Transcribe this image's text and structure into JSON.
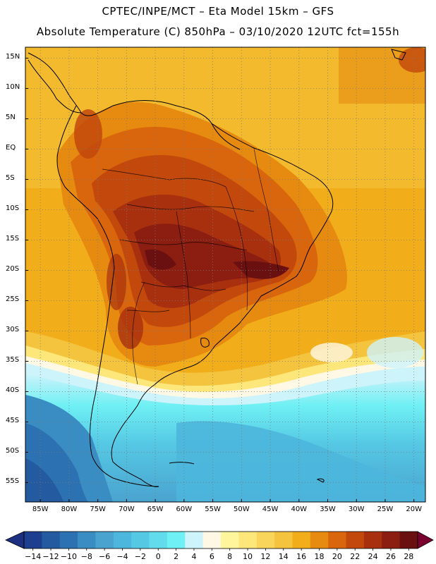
{
  "title": {
    "line1": "CPTEC/INPE/MCT –  Eta Model 15km – GFS",
    "line2": "Absolute Temperature (C) 850hPa – 03/10/2020 12UTC fct=155h"
  },
  "map": {
    "lat_labels": [
      "15N",
      "10N",
      "5N",
      "EQ",
      "5S",
      "10S",
      "15S",
      "20S",
      "25S",
      "30S",
      "35S",
      "40S",
      "45S",
      "50S",
      "55S"
    ],
    "lon_labels": [
      "85W",
      "80W",
      "75W",
      "70W",
      "65W",
      "60W",
      "55W",
      "50W",
      "45W",
      "40W",
      "35W",
      "30W",
      "25W",
      "20W"
    ],
    "lat_values": [
      15,
      10,
      5,
      0,
      -5,
      -10,
      -15,
      -20,
      -25,
      -30,
      -35,
      -40,
      -45,
      -50,
      -55
    ],
    "lon_values": [
      -85,
      -80,
      -75,
      -70,
      -65,
      -60,
      -55,
      -50,
      -45,
      -40,
      -35,
      -30,
      -25,
      -20
    ]
  },
  "colorbar": {
    "labels": [
      "-14",
      "-12",
      "-10",
      "-8",
      "-6",
      "-4",
      "-2",
      "0",
      "2",
      "4",
      "6",
      "8",
      "10",
      "12",
      "14",
      "16",
      "18",
      "20",
      "22",
      "24",
      "26",
      "28"
    ],
    "colors": [
      "#1e3f8f",
      "#245a9f",
      "#2c72b3",
      "#3a8dc3",
      "#4aa3cf",
      "#4db6dc",
      "#55c8e4",
      "#62dcec",
      "#6ff0f4",
      "#cdf3fb",
      "#fff8e4",
      "#fff59c",
      "#fde77a",
      "#f9d55c",
      "#f4c43f",
      "#f2ad1a",
      "#e68a10",
      "#d9650d",
      "#c2480c",
      "#a8300e",
      "#8b1e10",
      "#6b1010"
    ],
    "under_color": "#1c2f80",
    "over_color": "#7a0030"
  }
}
